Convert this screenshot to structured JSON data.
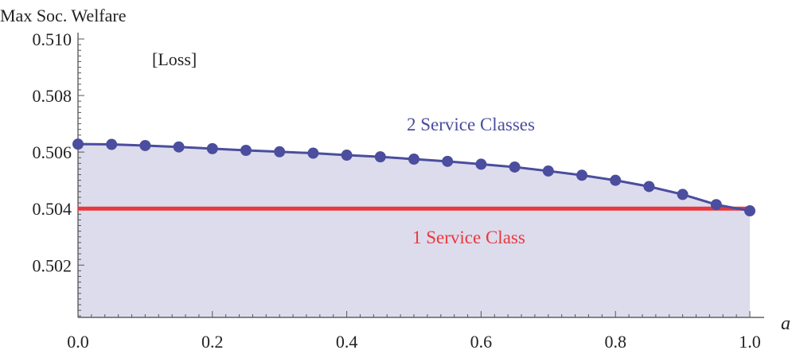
{
  "chart_data": {
    "type": "line",
    "title": "",
    "ylabel": "Max Soc. Welfare",
    "xlabel": "a",
    "panel_label": "[Loss]",
    "xlim": [
      0.0,
      1.0
    ],
    "ylim": [
      0.50015,
      0.51
    ],
    "xticks": [
      {
        "value": 0.0,
        "label": "0.0"
      },
      {
        "value": 0.2,
        "label": "0.2"
      },
      {
        "value": 0.4,
        "label": "0.4"
      },
      {
        "value": 0.6,
        "label": "0.6"
      },
      {
        "value": 0.8,
        "label": "0.8"
      },
      {
        "value": 1.0,
        "label": "1.0"
      }
    ],
    "yticks": [
      {
        "value": 0.502,
        "label": "0.502"
      },
      {
        "value": 0.504,
        "label": "0.504"
      },
      {
        "value": 0.506,
        "label": "0.506"
      },
      {
        "value": 0.508,
        "label": "0.508"
      },
      {
        "value": 0.51,
        "label": "0.510"
      }
    ],
    "series": [
      {
        "name": "2 Service Classes",
        "color": "#4b4d9e",
        "fill": "#dcdcec",
        "x": [
          0.0,
          0.05,
          0.1,
          0.15,
          0.2,
          0.25,
          0.3,
          0.35,
          0.4,
          0.45,
          0.5,
          0.55,
          0.6,
          0.65,
          0.7,
          0.75,
          0.8,
          0.85,
          0.9,
          0.95,
          1.0
        ],
        "y": [
          0.50628,
          0.50627,
          0.50623,
          0.50618,
          0.50612,
          0.50606,
          0.50601,
          0.50596,
          0.50589,
          0.50583,
          0.50575,
          0.50567,
          0.50557,
          0.50547,
          0.50533,
          0.50518,
          0.505,
          0.50478,
          0.5045,
          0.50414,
          0.50392
        ]
      },
      {
        "name": "1 Service Class",
        "color": "#e8383d",
        "x": [
          0.0,
          1.0
        ],
        "y": [
          0.504,
          0.504
        ]
      }
    ]
  }
}
